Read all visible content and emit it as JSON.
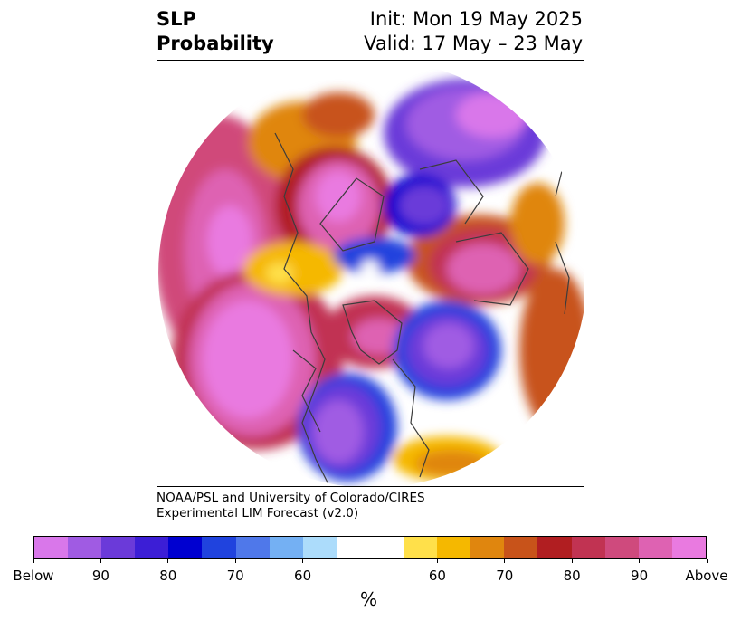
{
  "header": {
    "title_line1": "SLP",
    "title_line2": "Probability",
    "init": "Init: Mon 19 May 2025",
    "valid": "Valid: 17 May – 23 May"
  },
  "credit": {
    "line1": "NOAA/PSL and University of Colorado/CIRES",
    "line2": "Experimental LIM Forecast (v2.0)"
  },
  "colorbar": {
    "below_colors": [
      "#d977ea",
      "#a05be3",
      "#6b3ad9",
      "#3c1ed6",
      "#0000d0",
      "#2043de",
      "#4f78ea",
      "#74b0f3",
      "#acdcfb"
    ],
    "above_colors": [
      "#ffe04a",
      "#f5b800",
      "#e0860e",
      "#c8531a",
      "#b11e21",
      "#c13352",
      "#cf4a7d",
      "#de62b2",
      "#e97ae0"
    ],
    "tick_labels": [
      "Below",
      "90",
      "80",
      "70",
      "60",
      "60",
      "70",
      "80",
      "90",
      "Above"
    ],
    "unit": "%"
  }
}
